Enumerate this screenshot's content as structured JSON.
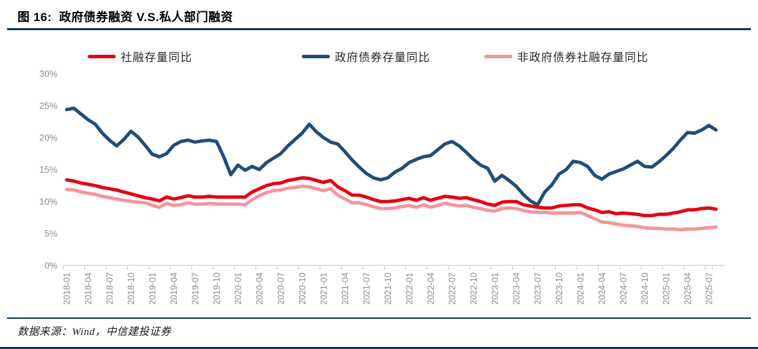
{
  "figure": {
    "title": "图 16:  政府债券融资 V.S.私人部门融资",
    "source": "数据来源：Wind，中信建投证券"
  },
  "colors": {
    "accent_rule": "#17375e",
    "red": "#e60012",
    "blue": "#1f4e79",
    "pink": "#f2969b",
    "axis_text": "#8c8c8c",
    "axis_line": "#d9d9d9",
    "tick_line": "#c9c9c9",
    "legend_text": "#262626"
  },
  "chart_data": {
    "type": "line",
    "title": "图 16: 政府债券融资 V.S.私人部门融资",
    "x_monthly_range": [
      "2018-01",
      "2025-08"
    ],
    "x_tick_labels": [
      "2018-01",
      "2018-04",
      "2018-07",
      "2018-10",
      "2019-01",
      "2019-04",
      "2019-07",
      "2019-10",
      "2020-01",
      "2020-04",
      "2020-07",
      "2020-10",
      "2021-01",
      "2021-04",
      "2021-07",
      "2021-10",
      "2022-01",
      "2022-04",
      "2022-07",
      "2022-10",
      "2023-01",
      "2023-04",
      "2023-07",
      "2023-10",
      "2024-01",
      "2024-04",
      "2024-07",
      "2024-10",
      "2025-01",
      "2025-04",
      "2025-07"
    ],
    "yticks": [
      "0%",
      "5%",
      "10%",
      "15%",
      "20%",
      "25%",
      "30%"
    ],
    "ylim": [
      0,
      30
    ],
    "grid": false,
    "legend_position": "top",
    "series": [
      {
        "name": "社融存量同比",
        "color_key": "red",
        "values": [
          13.4,
          13.2,
          12.9,
          12.7,
          12.5,
          12.2,
          12.0,
          11.8,
          11.5,
          11.2,
          10.9,
          10.6,
          10.4,
          10.1,
          10.7,
          10.4,
          10.6,
          10.9,
          10.7,
          10.7,
          10.8,
          10.7,
          10.7,
          10.7,
          10.7,
          10.7,
          11.5,
          12.0,
          12.5,
          12.8,
          12.9,
          13.3,
          13.5,
          13.7,
          13.6,
          13.3,
          13.0,
          13.3,
          12.3,
          11.7,
          11.0,
          11.0,
          10.7,
          10.3,
          10.0,
          10.0,
          10.1,
          10.3,
          10.5,
          10.2,
          10.6,
          10.2,
          10.5,
          10.8,
          10.7,
          10.5,
          10.6,
          10.3,
          10.0,
          9.6,
          9.4,
          9.9,
          10.0,
          10.0,
          9.5,
          9.3,
          9.1,
          9.0,
          9.0,
          9.3,
          9.4,
          9.5,
          9.5,
          9.0,
          8.7,
          8.3,
          8.4,
          8.1,
          8.2,
          8.1,
          8.0,
          7.8,
          7.8,
          8.0,
          8.0,
          8.2,
          8.4,
          8.7,
          8.7,
          8.9,
          9.0,
          8.8
        ]
      },
      {
        "name": "政府债券存量同比",
        "color_key": "blue",
        "values": [
          24.4,
          24.6,
          23.7,
          22.8,
          22.1,
          20.7,
          19.6,
          18.7,
          19.7,
          21.0,
          20.1,
          18.8,
          17.4,
          17.0,
          17.5,
          18.8,
          19.4,
          19.6,
          19.3,
          19.5,
          19.6,
          19.4,
          17.0,
          14.2,
          15.7,
          14.9,
          15.5,
          15.0,
          16.1,
          16.8,
          17.5,
          18.7,
          19.7,
          20.7,
          22.1,
          20.9,
          20.0,
          19.3,
          19.0,
          17.8,
          16.5,
          15.4,
          14.4,
          13.7,
          13.4,
          13.7,
          14.6,
          15.2,
          16.1,
          16.6,
          17.0,
          17.2,
          18.1,
          19.0,
          19.4,
          18.7,
          17.7,
          16.6,
          15.7,
          15.2,
          13.2,
          14.1,
          13.3,
          12.4,
          11.1,
          10.1,
          9.5,
          11.5,
          12.6,
          14.3,
          15.0,
          16.3,
          16.1,
          15.5,
          14.1,
          13.5,
          14.3,
          14.7,
          15.1,
          15.7,
          16.3,
          15.5,
          15.4,
          16.2,
          17.2,
          18.3,
          19.6,
          20.8,
          20.7,
          21.2,
          21.9,
          21.2
        ]
      },
      {
        "name": "非政府债券社融存量同比",
        "color_key": "pink",
        "values": [
          11.9,
          11.8,
          11.5,
          11.3,
          11.1,
          10.8,
          10.6,
          10.4,
          10.2,
          10.0,
          9.9,
          9.8,
          9.4,
          9.1,
          9.7,
          9.4,
          9.5,
          9.8,
          9.6,
          9.6,
          9.7,
          9.6,
          9.6,
          9.6,
          9.6,
          9.5,
          10.3,
          10.9,
          11.4,
          11.7,
          11.8,
          12.1,
          12.2,
          12.4,
          12.3,
          12.0,
          11.7,
          12.0,
          11.0,
          10.4,
          9.8,
          9.8,
          9.5,
          9.2,
          8.9,
          8.9,
          9.0,
          9.2,
          9.4,
          9.1,
          9.5,
          9.1,
          9.4,
          9.7,
          9.5,
          9.3,
          9.4,
          9.1,
          8.9,
          8.6,
          8.5,
          8.9,
          9.0,
          8.9,
          8.6,
          8.4,
          8.3,
          8.3,
          8.2,
          8.2,
          8.2,
          8.2,
          8.3,
          7.8,
          7.3,
          6.8,
          6.7,
          6.5,
          6.3,
          6.2,
          6.1,
          5.9,
          5.8,
          5.8,
          5.7,
          5.7,
          5.6,
          5.7,
          5.7,
          5.8,
          5.9,
          6.0
        ]
      }
    ]
  }
}
